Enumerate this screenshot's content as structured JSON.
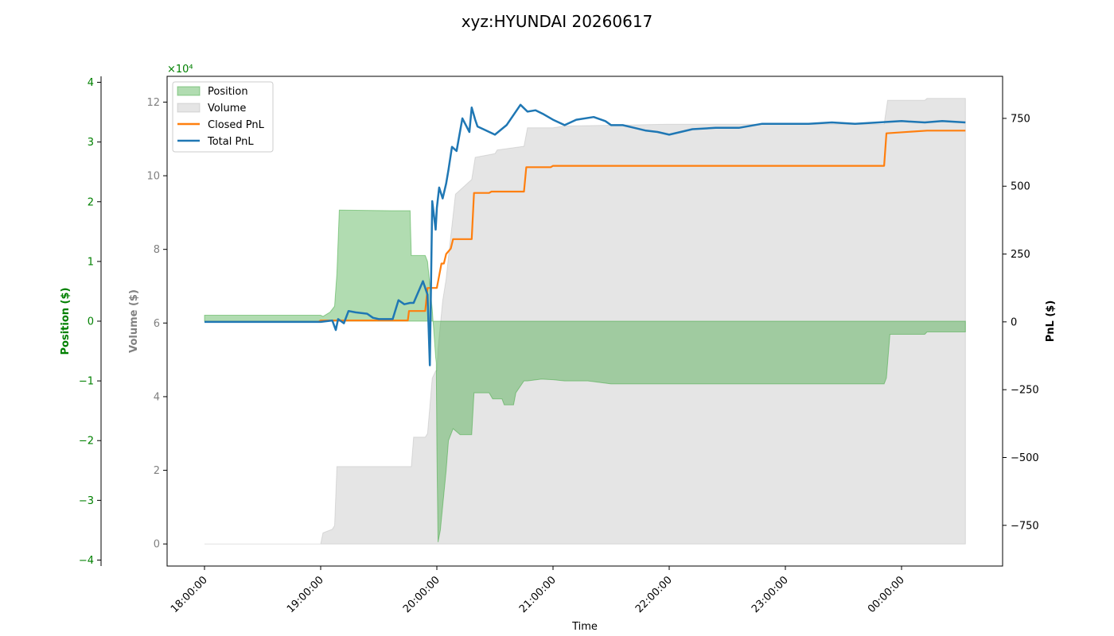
{
  "chart_data": {
    "type": "line",
    "title": "xyz:HYUNDAI 20260617",
    "xlabel": "Time",
    "x_ticks": [
      "18:00:00",
      "19:00:00",
      "20:00:00",
      "21:00:00",
      "22:00:00",
      "23:00:00",
      "00:00:00"
    ],
    "grid": false,
    "legend_position": "top-left",
    "colors": {
      "position": "#2ca02c",
      "volume": "#a9a9a9",
      "closed_pnl": "#ff7f0e",
      "total_pnl": "#1f77b4",
      "position_axis": "#008000",
      "volume_axis": "#808080"
    },
    "axes": {
      "position": {
        "label": "Position ($)",
        "range": [
          -4.1,
          4.1
        ],
        "ticks": [
          "−4",
          "−3",
          "−2",
          "−1",
          "0",
          "1",
          "2",
          "3",
          "4"
        ],
        "tick_values": [
          -4,
          -3,
          -2,
          -1,
          0,
          1,
          2,
          3,
          4
        ],
        "multiplier": "×10⁴"
      },
      "volume": {
        "label": "Volume ($)",
        "range": [
          -0.6,
          12.7
        ],
        "ticks": [
          "0",
          "2",
          "4",
          "6",
          "8",
          "10",
          "12"
        ],
        "tick_values": [
          0,
          2,
          4,
          6,
          8,
          10,
          12
        ],
        "multiplier": "×10⁴"
      },
      "pnl": {
        "label": "PnL ($)",
        "range": [
          -900,
          905
        ],
        "ticks": [
          "−750",
          "−500",
          "−250",
          "0",
          "250",
          "500",
          "750"
        ],
        "tick_values": [
          -750,
          -500,
          -250,
          0,
          250,
          500,
          750
        ]
      }
    },
    "series": [
      {
        "name": "Position",
        "kind": "area",
        "axis": "position",
        "x": [
          0,
          1,
          1.02,
          1.08,
          1.12,
          1.14,
          1.16,
          1.6,
          1.77,
          1.78,
          1.9,
          1.92,
          1.96,
          1.99,
          1.995,
          2.0,
          2.01,
          2.03,
          2.05,
          2.08,
          2.1,
          2.14,
          2.2,
          2.3,
          2.32,
          2.45,
          2.48,
          2.56,
          2.58,
          2.66,
          2.68,
          2.75,
          2.78,
          2.9,
          3.0,
          3.1,
          3.3,
          3.5,
          4.0,
          4.5,
          5.0,
          5.5,
          5.85,
          5.87,
          5.9,
          6.2,
          6.22,
          6.55
        ],
        "values": [
          0.1,
          0.1,
          0.08,
          0.15,
          0.25,
          0.8,
          1.86,
          1.85,
          1.85,
          1.1,
          1.1,
          1.0,
          0.2,
          -0.6,
          -0.7,
          -2.1,
          -3.7,
          -3.5,
          -3.1,
          -2.5,
          -2.0,
          -1.8,
          -1.9,
          -1.9,
          -1.2,
          -1.2,
          -1.3,
          -1.3,
          -1.4,
          -1.4,
          -1.2,
          -1.0,
          -1.0,
          -0.97,
          -0.98,
          -1.0,
          -1.0,
          -1.05,
          -1.05,
          -1.05,
          -1.05,
          -1.05,
          -1.05,
          -0.95,
          -0.22,
          -0.22,
          -0.18,
          -0.18
        ]
      },
      {
        "name": "Volume",
        "kind": "area",
        "axis": "volume",
        "x": [
          0,
          1,
          1.02,
          1.1,
          1.12,
          1.14,
          1.16,
          1.78,
          1.8,
          1.9,
          1.92,
          1.96,
          1.99,
          2.0,
          2.01,
          2.05,
          2.08,
          2.1,
          2.16,
          2.3,
          2.33,
          2.5,
          2.52,
          2.75,
          2.78,
          3.0,
          3.1,
          4.0,
          4.5,
          5.0,
          5.85,
          5.88,
          6.2,
          6.22,
          6.55
        ],
        "values": [
          0,
          0,
          0.3,
          0.4,
          0.5,
          2.1,
          2.1,
          2.1,
          2.9,
          2.9,
          3.0,
          4.5,
          4.7,
          4.7,
          5.3,
          6.6,
          7.2,
          7.8,
          9.5,
          9.9,
          10.5,
          10.6,
          10.7,
          10.8,
          11.3,
          11.3,
          11.35,
          11.4,
          11.4,
          11.4,
          11.4,
          12.05,
          12.05,
          12.1,
          12.1
        ]
      },
      {
        "name": "Closed PnL",
        "kind": "line",
        "axis": "pnl",
        "x": [
          0,
          0.98,
          1.0,
          1.5,
          1.75,
          1.76,
          1.9,
          1.92,
          2.0,
          2.02,
          2.04,
          2.06,
          2.08,
          2.1,
          2.12,
          2.14,
          2.16,
          2.18,
          2.3,
          2.32,
          2.45,
          2.47,
          2.75,
          2.77,
          2.98,
          3.0,
          5.85,
          5.87,
          6.22,
          6.55
        ],
        "values": [
          0,
          0,
          5,
          5,
          5,
          40,
          40,
          125,
          125,
          170,
          215,
          215,
          250,
          260,
          270,
          305,
          305,
          305,
          305,
          475,
          475,
          480,
          480,
          570,
          570,
          575,
          575,
          695,
          705,
          705
        ]
      },
      {
        "name": "Total PnL",
        "kind": "line",
        "axis": "pnl",
        "x": [
          0,
          0.5,
          1.0,
          1.1,
          1.13,
          1.15,
          1.2,
          1.24,
          1.3,
          1.4,
          1.45,
          1.5,
          1.62,
          1.67,
          1.72,
          1.77,
          1.8,
          1.88,
          1.92,
          1.94,
          1.96,
          1.99,
          2.0,
          2.02,
          2.05,
          2.08,
          2.1,
          2.13,
          2.17,
          2.22,
          2.28,
          2.3,
          2.33,
          2.35,
          2.4,
          2.5,
          2.6,
          2.72,
          2.78,
          2.85,
          2.92,
          3.0,
          3.1,
          3.2,
          3.35,
          3.45,
          3.5,
          3.6,
          3.7,
          3.8,
          3.9,
          4.0,
          4.2,
          4.4,
          4.6,
          4.8,
          5.0,
          5.2,
          5.4,
          5.6,
          5.8,
          6.0,
          6.2,
          6.35,
          6.55
        ],
        "values": [
          0,
          0,
          0,
          5,
          -30,
          10,
          -5,
          40,
          35,
          30,
          15,
          10,
          10,
          80,
          65,
          70,
          70,
          150,
          100,
          -160,
          445,
          340,
          420,
          495,
          455,
          510,
          560,
          645,
          630,
          750,
          700,
          790,
          745,
          720,
          710,
          690,
          725,
          800,
          775,
          780,
          765,
          745,
          725,
          745,
          755,
          740,
          725,
          725,
          715,
          705,
          700,
          690,
          710,
          715,
          715,
          730,
          730,
          730,
          735,
          730,
          735,
          740,
          735,
          740,
          735
        ]
      }
    ]
  }
}
